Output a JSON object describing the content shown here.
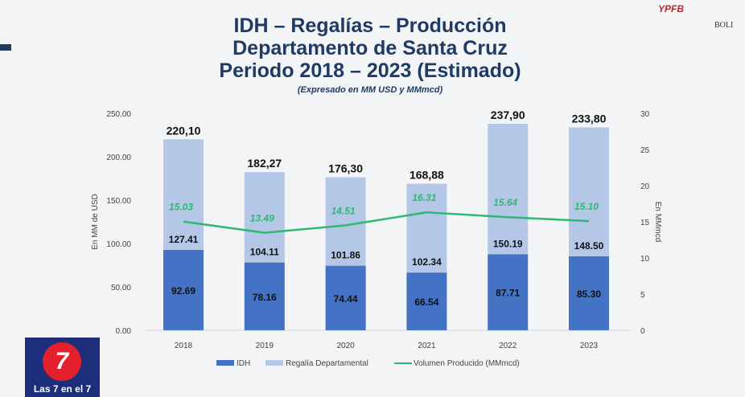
{
  "header": {
    "title_lines": [
      "IDH – Regalías – Producción",
      "Departamento de Santa Cruz",
      "Periodo 2018 – 2023 (Estimado)"
    ],
    "subtitle": "(Expresado en MM USD y MMmcd)"
  },
  "logos": {
    "tv": "Las 7 en el 7",
    "tv_mark": "7",
    "ypfb": "YPFB",
    "bolivia": "BOLI"
  },
  "chart_data": {
    "type": "bar",
    "stacked": true,
    "categories": [
      "2018",
      "2019",
      "2020",
      "2021",
      "2022",
      "2023"
    ],
    "series": [
      {
        "name": "IDH",
        "values": [
          92.69,
          78.16,
          74.44,
          66.54,
          87.71,
          85.3
        ],
        "labels": [
          "92.69",
          "78.16",
          "74.44",
          "66.54",
          "87.71",
          "85.30"
        ],
        "color": "#4472c4",
        "axis": "left"
      },
      {
        "name": "Regalía Departamental",
        "values": [
          127.41,
          104.11,
          101.86,
          102.34,
          150.19,
          148.5
        ],
        "labels": [
          "127.41",
          "104.11",
          "101.86",
          "102.34",
          "150.19",
          "148.50"
        ],
        "color": "#b4c7e7",
        "axis": "left"
      },
      {
        "name": "Volumen Producido (MMmcd)",
        "type": "line",
        "values": [
          15.03,
          13.49,
          14.51,
          16.31,
          15.64,
          15.1
        ],
        "labels": [
          "15.03",
          "13.49",
          "14.51",
          "16.31",
          "15.64",
          "15.10"
        ],
        "color": "#2eb872",
        "axis": "right"
      }
    ],
    "totals": [
      "220,10",
      "182,27",
      "176,30",
      "168,88",
      "237,90",
      "233,80"
    ],
    "ylabel": "En MM de USD",
    "y2label": "En MMmcd",
    "ylim": [
      0,
      250
    ],
    "y2lim": [
      0,
      30
    ],
    "yticks": [
      "0.00",
      "50.00",
      "100.00",
      "150.00",
      "200.00",
      "250.00"
    ],
    "y2ticks": [
      "0",
      "5",
      "10",
      "15",
      "20",
      "25",
      "30"
    ],
    "grid": false,
    "legend": "bottom"
  }
}
